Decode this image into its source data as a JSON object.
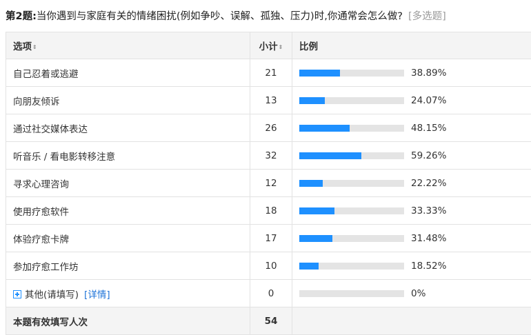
{
  "question": {
    "number": "第2题:",
    "text": "当你遇到与家庭有关的情绪困扰(例如争吵、误解、孤独、压力)时,你通常会怎么做?",
    "type": "[多选题]"
  },
  "table": {
    "headers": {
      "option": "选项",
      "count": "小计",
      "ratio": "比例",
      "sort_symbol": "⇕"
    },
    "rows": [
      {
        "option": "自己忍着或逃避",
        "count": "21",
        "percent": "38.89%",
        "fraction": 0.3889
      },
      {
        "option": "向朋友倾诉",
        "count": "13",
        "percent": "24.07%",
        "fraction": 0.2407
      },
      {
        "option": "通过社交媒体表达",
        "count": "26",
        "percent": "48.15%",
        "fraction": 0.4815
      },
      {
        "option": "听音乐 / 看电影转移注意",
        "count": "32",
        "percent": "59.26%",
        "fraction": 0.5926
      },
      {
        "option": "寻求心理咨询",
        "count": "12",
        "percent": "22.22%",
        "fraction": 0.2222
      },
      {
        "option": "使用疗愈软件",
        "count": "18",
        "percent": "33.33%",
        "fraction": 0.3333
      },
      {
        "option": "体验疗愈卡牌",
        "count": "17",
        "percent": "31.48%",
        "fraction": 0.3148
      },
      {
        "option": "参加疗愈工作坊",
        "count": "10",
        "percent": "18.52%",
        "fraction": 0.1852
      }
    ],
    "other": {
      "option": "其他(请填写)",
      "detail_link": "[详情]",
      "count": "0",
      "percent": "0%",
      "fraction": 0,
      "icon": "expand-plus-icon"
    },
    "total": {
      "label": "本题有效填写人次",
      "count": "54"
    }
  },
  "colors": {
    "bar_fill": "#1e90ff",
    "bar_track": "#e4e4e4",
    "header_bg": "#f4f4f4",
    "link": "#1e73d8"
  }
}
